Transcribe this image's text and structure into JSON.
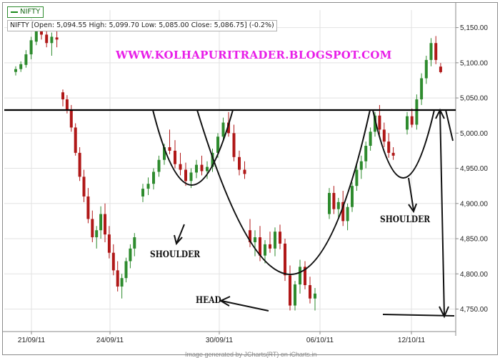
{
  "legend": {
    "label": "NIFTY",
    "color": "#1a8a1a"
  },
  "ohlc_readout": "NIFTY [Open: 5,094.55  High: 5,099.70  Low: 5,085.00  Close: 5,086.75] (-0.2%)",
  "watermark": "WWW.KOLHAPURITRADER.BLOGSPOT.COM",
  "footer": "Image generated by JCharts(RT) on iCharts.in",
  "annotations": {
    "left_shoulder": "SHOULDER",
    "right_shoulder": "SHOULDER",
    "head": "HEAD"
  },
  "colors": {
    "up": "#2e8b2e",
    "down": "#b01818",
    "grid": "#e2e2e2",
    "watermark": "#e81ee8",
    "neckline": "#000000"
  },
  "chart_data": {
    "type": "candlestick",
    "title": "",
    "x_tick_labels": [
      "21/09/11",
      "24/09/11",
      "30/09/11",
      "06/10/11",
      "12/10/11"
    ],
    "y_ticks": [
      4750,
      4800,
      4850,
      4900,
      4950,
      5000,
      5050,
      5100,
      5150
    ],
    "y_tick_labels": [
      "4,750.00",
      "4,800.00",
      "4,850.00",
      "4,900.00",
      "4,950.00",
      "5,000.00",
      "5,050.00",
      "5,100.00",
      "5,150.00"
    ],
    "ylim": [
      4718,
      5175
    ],
    "grid": true,
    "neckline": 5050,
    "target_level": 4750,
    "last_candle": {
      "open": 5094.55,
      "high": 5099.7,
      "low": 5085.0,
      "close": 5086.75,
      "change_pct": -0.2
    },
    "candles": [
      [
        5087,
        5095,
        5082,
        5091
      ],
      [
        5091,
        5102,
        5087,
        5098
      ],
      [
        5097,
        5118,
        5093,
        5112
      ],
      [
        5112,
        5137,
        5105,
        5132
      ],
      [
        5130,
        5152,
        5125,
        5145
      ],
      [
        5145,
        5158,
        5133,
        5140
      ],
      [
        5140,
        5150,
        5122,
        5128
      ],
      [
        5128,
        5143,
        5110,
        5137
      ],
      [
        5136,
        5145,
        5122,
        5133
      ],
      [
        5058,
        5062,
        5038,
        5048
      ],
      [
        5048,
        5054,
        5028,
        5032
      ],
      [
        5032,
        5040,
        5002,
        5008
      ],
      [
        5008,
        5014,
        4968,
        4972
      ],
      [
        4972,
        4980,
        4932,
        4938
      ],
      [
        4938,
        4948,
        4902,
        4910
      ],
      [
        4910,
        4922,
        4872,
        4878
      ],
      [
        4878,
        4890,
        4845,
        4852
      ],
      [
        4852,
        4868,
        4836,
        4862
      ],
      [
        4862,
        4896,
        4850,
        4885
      ],
      [
        4885,
        4900,
        4845,
        4856
      ],
      [
        4856,
        4868,
        4822,
        4830
      ],
      [
        4830,
        4842,
        4798,
        4805
      ],
      [
        4805,
        4818,
        4775,
        4782
      ],
      [
        4782,
        4800,
        4765,
        4794
      ],
      [
        4794,
        4823,
        4788,
        4818
      ],
      [
        4818,
        4842,
        4808,
        4836
      ],
      [
        4836,
        4858,
        4825,
        4852
      ],
      [
        4910,
        4928,
        4902,
        4921
      ],
      [
        4921,
        4937,
        4912,
        4928
      ],
      [
        4928,
        4950,
        4920,
        4945
      ],
      [
        4945,
        4968,
        4938,
        4962
      ],
      [
        4962,
        4985,
        4955,
        4980
      ],
      [
        4980,
        5005,
        4970,
        4975
      ],
      [
        4975,
        4990,
        4950,
        4956
      ],
      [
        4956,
        4972,
        4940,
        4948
      ],
      [
        4948,
        4958,
        4925,
        4932
      ],
      [
        4932,
        4950,
        4922,
        4944
      ],
      [
        4944,
        4962,
        4936,
        4955
      ],
      [
        4955,
        4968,
        4940,
        4946
      ],
      [
        4946,
        4960,
        4935,
        4952
      ],
      [
        4952,
        4978,
        4945,
        4972
      ],
      [
        4972,
        5000,
        4965,
        4995
      ],
      [
        4995,
        5022,
        4988,
        5015
      ],
      [
        5015,
        5030,
        4995,
        5000
      ],
      [
        5000,
        5012,
        4960,
        4966
      ],
      [
        4966,
        4975,
        4940,
        4948
      ],
      [
        4948,
        4960,
        4935,
        4942
      ],
      [
        4862,
        4878,
        4838,
        4845
      ],
      [
        4845,
        4862,
        4825,
        4852
      ],
      [
        4852,
        4868,
        4818,
        4826
      ],
      [
        4826,
        4848,
        4815,
        4842
      ],
      [
        4842,
        4860,
        4830,
        4836
      ],
      [
        4836,
        4866,
        4825,
        4860
      ],
      [
        4860,
        4870,
        4835,
        4843
      ],
      [
        4843,
        4850,
        4790,
        4798
      ],
      [
        4798,
        4812,
        4748,
        4755
      ],
      [
        4755,
        4790,
        4748,
        4785
      ],
      [
        4785,
        4820,
        4772,
        4810
      ],
      [
        4810,
        4818,
        4778,
        4784
      ],
      [
        4784,
        4796,
        4758,
        4765
      ],
      [
        4765,
        4780,
        4748,
        4772
      ],
      [
        4885,
        4922,
        4878,
        4915
      ],
      [
        4915,
        4925,
        4885,
        4892
      ],
      [
        4892,
        4908,
        4880,
        4902
      ],
      [
        4902,
        4918,
        4868,
        4875
      ],
      [
        4875,
        4900,
        4862,
        4895
      ],
      [
        4895,
        4930,
        4888,
        4925
      ],
      [
        4925,
        4955,
        4918,
        4948
      ],
      [
        4948,
        4968,
        4935,
        4960
      ],
      [
        4960,
        4988,
        4950,
        4982
      ],
      [
        4982,
        5008,
        4975,
        5002
      ],
      [
        5002,
        5030,
        4995,
        5025
      ],
      [
        5025,
        5040,
        4998,
        5005
      ],
      [
        5005,
        5015,
        4980,
        4988
      ],
      [
        4988,
        5000,
        4965,
        4972
      ],
      [
        4972,
        4980,
        4962,
        4968
      ],
      [
        5005,
        5030,
        4998,
        5024
      ],
      [
        5024,
        5035,
        5008,
        5012
      ],
      [
        5012,
        5055,
        5005,
        5048
      ],
      [
        5048,
        5085,
        5040,
        5078
      ],
      [
        5078,
        5110,
        5070,
        5104
      ],
      [
        5104,
        5135,
        5095,
        5128
      ],
      [
        5128,
        5138,
        5098,
        5104
      ],
      [
        5094.55,
        5099.7,
        5085,
        5086.75
      ]
    ]
  }
}
